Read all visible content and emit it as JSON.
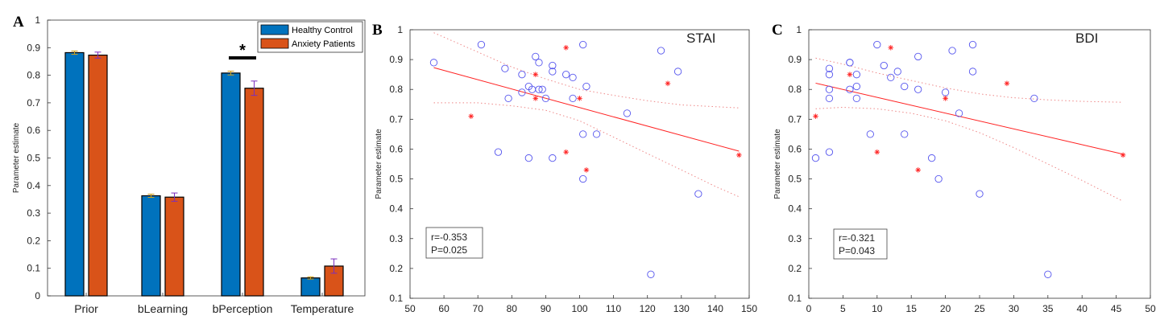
{
  "chart_data": [
    {
      "panel": "A",
      "type": "bar",
      "ylabel": "Parameter estimate",
      "ylim": [
        0,
        1
      ],
      "yticks": [
        "0",
        "0.1",
        "0.2",
        "0.3",
        "0.4",
        "0.5",
        "0.6",
        "0.7",
        "0.8",
        "0.9",
        "1"
      ],
      "categories": [
        "Prior",
        "bLearning",
        "bPerception",
        "Temperature"
      ],
      "series": [
        {
          "name": "Healthy Control",
          "color": "#0072bd",
          "values": [
            0.882,
            0.363,
            0.808,
            0.065
          ],
          "errors": [
            0.006,
            0.006,
            0.007,
            0.004
          ]
        },
        {
          "name": "Anxiety Patients",
          "color": "#d95319",
          "values": [
            0.873,
            0.358,
            0.753,
            0.108
          ],
          "errors": [
            0.011,
            0.015,
            0.026,
            0.026
          ]
        }
      ],
      "legend_position": "top-right",
      "significance": [
        {
          "category": "bPerception",
          "label": "*"
        }
      ]
    },
    {
      "panel": "B",
      "type": "scatter",
      "title": "STAI",
      "ylabel": "Parameter estimate",
      "xlim": [
        50,
        150
      ],
      "ylim": [
        0.1,
        1
      ],
      "xticks": [
        "50",
        "60",
        "70",
        "80",
        "90",
        "100",
        "110",
        "120",
        "130",
        "140",
        "150"
      ],
      "yticks": [
        "0.1",
        "0.2",
        "0.3",
        "0.4",
        "0.5",
        "0.6",
        "0.7",
        "0.8",
        "0.9",
        "1"
      ],
      "circle_points": [
        [
          57,
          0.89
        ],
        [
          71,
          0.95
        ],
        [
          76,
          0.59
        ],
        [
          78,
          0.87
        ],
        [
          79,
          0.77
        ],
        [
          83,
          0.79
        ],
        [
          83,
          0.85
        ],
        [
          85,
          0.81
        ],
        [
          85,
          0.57
        ],
        [
          86,
          0.8
        ],
        [
          87,
          0.91
        ],
        [
          88,
          0.89
        ],
        [
          88,
          0.8
        ],
        [
          89,
          0.8
        ],
        [
          90,
          0.77
        ],
        [
          92,
          0.88
        ],
        [
          92,
          0.86
        ],
        [
          92,
          0.57
        ],
        [
          96,
          0.85
        ],
        [
          98,
          0.84
        ],
        [
          98,
          0.77
        ],
        [
          101,
          0.95
        ],
        [
          101,
          0.65
        ],
        [
          101,
          0.5
        ],
        [
          102,
          0.81
        ],
        [
          105,
          0.65
        ],
        [
          114,
          0.72
        ],
        [
          121,
          0.18
        ],
        [
          124,
          0.93
        ],
        [
          129,
          0.86
        ],
        [
          135,
          0.45
        ]
      ],
      "star_points": [
        [
          68,
          0.71
        ],
        [
          87,
          0.85
        ],
        [
          87,
          0.77
        ],
        [
          96,
          0.94
        ],
        [
          96,
          0.59
        ],
        [
          100,
          0.77
        ],
        [
          102,
          0.53
        ],
        [
          126,
          0.82
        ],
        [
          147,
          0.58
        ]
      ],
      "fit_line": [
        [
          57,
          0.873
        ],
        [
          147,
          0.593
        ]
      ],
      "ci_upper": [
        [
          57,
          0.99
        ],
        [
          70,
          0.925
        ],
        [
          80,
          0.875
        ],
        [
          90,
          0.835
        ],
        [
          100,
          0.8
        ],
        [
          110,
          0.78
        ],
        [
          120,
          0.762
        ],
        [
          130,
          0.748
        ],
        [
          140,
          0.742
        ],
        [
          147,
          0.738
        ]
      ],
      "ci_lower": [
        [
          57,
          0.755
        ],
        [
          70,
          0.755
        ],
        [
          80,
          0.745
        ],
        [
          90,
          0.73
        ],
        [
          100,
          0.695
        ],
        [
          110,
          0.64
        ],
        [
          120,
          0.585
        ],
        [
          130,
          0.53
        ],
        [
          140,
          0.475
        ],
        [
          147,
          0.44
        ]
      ],
      "stats": {
        "r": "r=-0.353",
        "p": "P=0.025"
      }
    },
    {
      "panel": "C",
      "type": "scatter",
      "title": "BDI",
      "ylabel": "Parameter estimate",
      "xlim": [
        0,
        50
      ],
      "ylim": [
        0.1,
        1
      ],
      "xticks": [
        "0",
        "5",
        "10",
        "15",
        "20",
        "25",
        "30",
        "35",
        "40",
        "45",
        "50"
      ],
      "yticks": [
        "0.1",
        "0.2",
        "0.3",
        "0.4",
        "0.5",
        "0.6",
        "0.7",
        "0.8",
        "0.9",
        "1"
      ],
      "circle_points": [
        [
          1,
          0.57
        ],
        [
          3,
          0.87
        ],
        [
          3,
          0.85
        ],
        [
          3,
          0.8
        ],
        [
          3,
          0.77
        ],
        [
          3,
          0.59
        ],
        [
          6,
          0.89
        ],
        [
          6,
          0.89
        ],
        [
          6,
          0.8
        ],
        [
          7,
          0.85
        ],
        [
          7,
          0.81
        ],
        [
          7,
          0.77
        ],
        [
          9,
          0.65
        ],
        [
          10,
          0.95
        ],
        [
          11,
          0.88
        ],
        [
          12,
          0.84
        ],
        [
          13,
          0.86
        ],
        [
          14,
          0.81
        ],
        [
          14,
          0.65
        ],
        [
          16,
          0.91
        ],
        [
          16,
          0.8
        ],
        [
          18,
          0.57
        ],
        [
          19,
          0.5
        ],
        [
          20,
          0.79
        ],
        [
          21,
          0.93
        ],
        [
          22,
          0.72
        ],
        [
          24,
          0.95
        ],
        [
          24,
          0.86
        ],
        [
          25,
          0.45
        ],
        [
          33,
          0.77
        ],
        [
          35,
          0.18
        ]
      ],
      "star_points": [
        [
          1,
          0.71
        ],
        [
          6,
          0.85
        ],
        [
          10,
          0.59
        ],
        [
          12,
          0.94
        ],
        [
          16,
          0.53
        ],
        [
          20,
          0.77
        ],
        [
          29,
          0.82
        ],
        [
          46,
          0.58
        ]
      ],
      "fit_line": [
        [
          1,
          0.821
        ],
        [
          46,
          0.583
        ]
      ],
      "ci_upper": [
        [
          1,
          0.905
        ],
        [
          5,
          0.885
        ],
        [
          10,
          0.855
        ],
        [
          15,
          0.83
        ],
        [
          20,
          0.805
        ],
        [
          25,
          0.785
        ],
        [
          30,
          0.772
        ],
        [
          35,
          0.765
        ],
        [
          40,
          0.76
        ],
        [
          46,
          0.757
        ]
      ],
      "ci_lower": [
        [
          1,
          0.735
        ],
        [
          5,
          0.74
        ],
        [
          10,
          0.735
        ],
        [
          15,
          0.72
        ],
        [
          20,
          0.695
        ],
        [
          25,
          0.655
        ],
        [
          30,
          0.605
        ],
        [
          35,
          0.55
        ],
        [
          40,
          0.495
        ],
        [
          46,
          0.425
        ]
      ],
      "stats": {
        "r": "r=-0.321",
        "p": "P=0.043"
      }
    }
  ]
}
